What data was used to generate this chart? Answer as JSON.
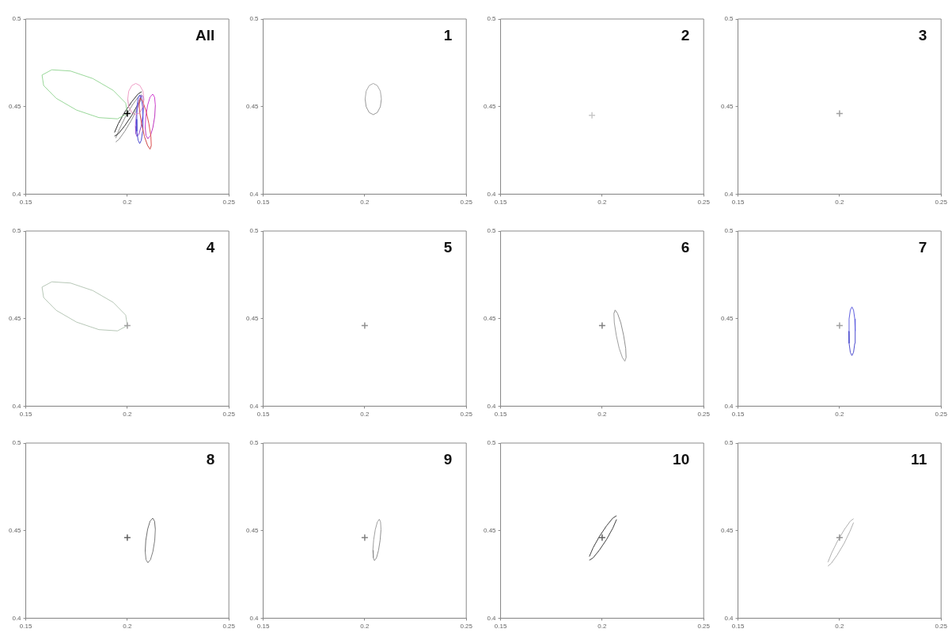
{
  "chart_data": [
    {
      "type": "line",
      "annotations": [
        "All"
      ],
      "xlim": [
        0.15,
        0.25
      ],
      "ylim": [
        0.4,
        0.5
      ],
      "xticks": [
        0.15,
        0.2,
        0.25
      ],
      "yticks": [
        0.4,
        0.45,
        0.5
      ],
      "series": [
        {
          "type": "line",
          "marker": "none",
          "color": "#f0a0c8",
          "x": [
            0.2002,
            0.2007,
            0.2022,
            0.2042,
            0.2062,
            0.2077,
            0.2082
          ],
          "values": [
            0.4543,
            0.4588,
            0.462,
            0.4632,
            0.462,
            0.4588,
            0.4543
          ]
        },
        {
          "type": "line",
          "marker": "none",
          "color": "#e090b8",
          "x": [
            0.2002,
            0.2007,
            0.2022,
            0.2042,
            0.2062,
            0.2077,
            0.2082
          ],
          "values": [
            0.4543,
            0.4499,
            0.4466,
            0.4454,
            0.4466,
            0.4499,
            0.4543
          ]
        },
        {
          "type": "line",
          "marker": "none",
          "color": "#9ad89a",
          "x": [
            0.158,
            0.1628,
            0.172,
            0.183,
            0.193,
            0.1992,
            0.2
          ],
          "values": [
            0.468,
            0.471,
            0.4703,
            0.466,
            0.4593,
            0.452,
            0.446
          ]
        },
        {
          "type": "line",
          "marker": "none",
          "color": "#9ad89a",
          "x": [
            0.158,
            0.1588,
            0.165,
            0.175,
            0.186,
            0.1952,
            0.2
          ],
          "values": [
            0.468,
            0.462,
            0.4547,
            0.448,
            0.4437,
            0.443,
            0.446
          ]
        },
        {
          "type": "line",
          "marker": "none",
          "color": "#e05050",
          "x": [
            0.2058,
            0.2064,
            0.2076,
            0.2092,
            0.2106,
            0.2116,
            0.2118
          ],
          "values": [
            0.4529,
            0.4549,
            0.4529,
            0.4476,
            0.4403,
            0.433,
            0.4277
          ]
        },
        {
          "type": "line",
          "marker": "none",
          "color": "#d04848",
          "x": [
            0.2058,
            0.206,
            0.207,
            0.2084,
            0.21,
            0.2112,
            0.2118
          ],
          "values": [
            0.4529,
            0.4476,
            0.4403,
            0.433,
            0.4277,
            0.4257,
            0.4277
          ]
        },
        {
          "type": "line",
          "marker": "none",
          "color": "#5a5ae0",
          "x": [
            0.2045,
            0.2047,
            0.2053,
            0.2061,
            0.2069,
            0.2075,
            0.2077
          ],
          "values": [
            0.4428,
            0.4498,
            0.4548,
            0.4567,
            0.4548,
            0.4498,
            0.4428
          ]
        },
        {
          "type": "line",
          "marker": "none",
          "color": "#4c4cd0",
          "x": [
            0.2045,
            0.2047,
            0.2053,
            0.2061,
            0.2069,
            0.2075,
            0.2077
          ],
          "values": [
            0.4428,
            0.4359,
            0.4308,
            0.4289,
            0.4308,
            0.4359,
            0.4428
          ]
        },
        {
          "type": "line",
          "marker": "none",
          "color": "#d040d0",
          "x": [
            0.2088,
            0.2091,
            0.21,
            0.2112,
            0.2125,
            0.2134,
            0.2138
          ],
          "values": [
            0.4381,
            0.4444,
            0.4508,
            0.4554,
            0.4571,
            0.4554,
            0.4508
          ]
        },
        {
          "type": "line",
          "marker": "none",
          "color": "#c038c0",
          "x": [
            0.2088,
            0.2092,
            0.2101,
            0.2114,
            0.2126,
            0.2135,
            0.2138
          ],
          "values": [
            0.4381,
            0.4334,
            0.4317,
            0.4334,
            0.4381,
            0.4444,
            0.4508
          ]
        },
        {
          "type": "line",
          "marker": "none",
          "color": "#a060e0",
          "x": [
            0.204,
            0.2044,
            0.2052,
            0.2062,
            0.2072,
            0.2078,
            0.208
          ],
          "values": [
            0.4388,
            0.4447,
            0.4506,
            0.4549,
            0.4565,
            0.4549,
            0.4506
          ]
        },
        {
          "type": "line",
          "marker": "none",
          "color": "#9050d0",
          "x": [
            0.204,
            0.2042,
            0.2048,
            0.2058,
            0.2068,
            0.2076,
            0.208
          ],
          "values": [
            0.4388,
            0.4345,
            0.4329,
            0.4345,
            0.4388,
            0.4447,
            0.4506
          ]
        },
        {
          "type": "line",
          "marker": "none",
          "color": "#303030",
          "x": [
            0.1937,
            0.1955,
            0.1986,
            0.2022,
            0.2053,
            0.2071
          ],
          "values": [
            0.4331,
            0.4344,
            0.4388,
            0.445,
            0.4515,
            0.4564
          ]
        },
        {
          "type": "line",
          "marker": "none",
          "color": "#303030",
          "x": [
            0.1937,
            0.1955,
            0.1986,
            0.2022,
            0.2053,
            0.2071
          ],
          "values": [
            0.4352,
            0.4401,
            0.4466,
            0.4528,
            0.4572,
            0.4585
          ]
        },
        {
          "type": "line",
          "marker": "none",
          "color": "#909090",
          "x": [
            0.1943,
            0.1959,
            0.1988,
            0.2022,
            0.2051,
            0.2069
          ],
          "values": [
            0.4298,
            0.4313,
            0.436,
            0.4426,
            0.4495,
            0.4546
          ]
        },
        {
          "type": "line",
          "marker": "none",
          "color": "#909090",
          "x": [
            0.1943,
            0.1961,
            0.199,
            0.2024,
            0.2053,
            0.2069
          ],
          "values": [
            0.432,
            0.4372,
            0.444,
            0.4507,
            0.4554,
            0.4568
          ]
        },
        {
          "type": "scatter",
          "marker": "cross",
          "color": "#000000",
          "x": [
            0.2
          ],
          "values": [
            0.446
          ]
        }
      ]
    },
    {
      "type": "line",
      "annotations": [
        "1"
      ],
      "xlim": [
        0.15,
        0.25
      ],
      "ylim": [
        0.4,
        0.5
      ],
      "xticks": [
        0.15,
        0.2,
        0.25
      ],
      "yticks": [
        0.4,
        0.45,
        0.5
      ],
      "series": [
        {
          "type": "line",
          "marker": "none",
          "color": "#a8a8a8",
          "x": [
            0.2002,
            0.2007,
            0.2022,
            0.2042,
            0.2062,
            0.2077,
            0.2082
          ],
          "values": [
            0.4543,
            0.4588,
            0.462,
            0.4632,
            0.462,
            0.4588,
            0.4543
          ]
        },
        {
          "type": "line",
          "marker": "none",
          "color": "#989898",
          "x": [
            0.2002,
            0.2007,
            0.2022,
            0.2042,
            0.2062,
            0.2077,
            0.2082
          ],
          "values": [
            0.4543,
            0.4499,
            0.4466,
            0.4454,
            0.4466,
            0.4499,
            0.4543
          ]
        }
      ]
    },
    {
      "type": "line",
      "annotations": [
        "2"
      ],
      "xlim": [
        0.15,
        0.25
      ],
      "ylim": [
        0.4,
        0.5
      ],
      "xticks": [
        0.15,
        0.2,
        0.25
      ],
      "yticks": [
        0.4,
        0.45,
        0.5
      ],
      "series": [
        {
          "type": "scatter",
          "marker": "cross",
          "color": "#c8c8c8",
          "x": [
            0.195
          ],
          "values": [
            0.445
          ]
        }
      ]
    },
    {
      "type": "line",
      "annotations": [
        "3"
      ],
      "xlim": [
        0.15,
        0.25
      ],
      "ylim": [
        0.4,
        0.5
      ],
      "xticks": [
        0.15,
        0.2,
        0.25
      ],
      "yticks": [
        0.4,
        0.45,
        0.5
      ],
      "series": [
        {
          "type": "scatter",
          "marker": "cross",
          "color": "#a0a0a0",
          "x": [
            0.2
          ],
          "values": [
            0.446
          ]
        }
      ]
    },
    {
      "type": "line",
      "annotations": [
        "4"
      ],
      "xlim": [
        0.15,
        0.25
      ],
      "ylim": [
        0.4,
        0.5
      ],
      "xticks": [
        0.15,
        0.2,
        0.25
      ],
      "yticks": [
        0.4,
        0.45,
        0.5
      ],
      "series": [
        {
          "type": "line",
          "marker": "none",
          "color": "#b8c8b8",
          "x": [
            0.158,
            0.1628,
            0.172,
            0.183,
            0.193,
            0.1992,
            0.2
          ],
          "values": [
            0.468,
            0.471,
            0.4703,
            0.466,
            0.4593,
            0.452,
            0.446
          ]
        },
        {
          "type": "line",
          "marker": "none",
          "color": "#b8c8b8",
          "x": [
            0.158,
            0.1588,
            0.165,
            0.175,
            0.186,
            0.1952,
            0.2
          ],
          "values": [
            0.468,
            0.462,
            0.4547,
            0.448,
            0.4437,
            0.443,
            0.446
          ]
        },
        {
          "type": "scatter",
          "marker": "cross",
          "color": "#a0a0a0",
          "x": [
            0.2
          ],
          "values": [
            0.446
          ]
        }
      ]
    },
    {
      "type": "line",
      "annotations": [
        "5"
      ],
      "xlim": [
        0.15,
        0.25
      ],
      "ylim": [
        0.4,
        0.5
      ],
      "xticks": [
        0.15,
        0.2,
        0.25
      ],
      "yticks": [
        0.4,
        0.45,
        0.5
      ],
      "series": [
        {
          "type": "scatter",
          "marker": "cross",
          "color": "#909090",
          "x": [
            0.2
          ],
          "values": [
            0.446
          ]
        }
      ]
    },
    {
      "type": "line",
      "annotations": [
        "6"
      ],
      "xlim": [
        0.15,
        0.25
      ],
      "ylim": [
        0.4,
        0.5
      ],
      "xticks": [
        0.15,
        0.2,
        0.25
      ],
      "yticks": [
        0.4,
        0.45,
        0.5
      ],
      "series": [
        {
          "type": "line",
          "marker": "none",
          "color": "#909090",
          "x": [
            0.2058,
            0.2064,
            0.2076,
            0.2092,
            0.2106,
            0.2116,
            0.2118
          ],
          "values": [
            0.4529,
            0.4549,
            0.4529,
            0.4476,
            0.4403,
            0.433,
            0.4277
          ]
        },
        {
          "type": "line",
          "marker": "none",
          "color": "#a0a0a0",
          "x": [
            0.2058,
            0.206,
            0.207,
            0.2084,
            0.21,
            0.2112,
            0.2118
          ],
          "values": [
            0.4529,
            0.4476,
            0.4403,
            0.433,
            0.4277,
            0.4257,
            0.4277
          ]
        },
        {
          "type": "scatter",
          "marker": "cross",
          "color": "#808080",
          "x": [
            0.2
          ],
          "values": [
            0.446
          ]
        }
      ]
    },
    {
      "type": "line",
      "annotations": [
        "7"
      ],
      "xlim": [
        0.15,
        0.25
      ],
      "ylim": [
        0.4,
        0.5
      ],
      "xticks": [
        0.15,
        0.2,
        0.25
      ],
      "yticks": [
        0.4,
        0.45,
        0.5
      ],
      "series": [
        {
          "type": "line",
          "marker": "none",
          "color": "#6060e0",
          "x": [
            0.2045,
            0.2047,
            0.2053,
            0.2061,
            0.2069,
            0.2075,
            0.2077
          ],
          "values": [
            0.4428,
            0.4498,
            0.4548,
            0.4567,
            0.4548,
            0.4498,
            0.4428
          ]
        },
        {
          "type": "line",
          "marker": "none",
          "color": "#5050d0",
          "x": [
            0.2045,
            0.2047,
            0.2053,
            0.2061,
            0.2069,
            0.2075,
            0.2077
          ],
          "values": [
            0.4428,
            0.4359,
            0.4308,
            0.4289,
            0.4308,
            0.4359,
            0.4428
          ]
        },
        {
          "type": "scatter",
          "marker": "cross",
          "color": "#a0a0a0",
          "x": [
            0.2
          ],
          "values": [
            0.446
          ]
        }
      ]
    },
    {
      "type": "line",
      "annotations": [
        "8"
      ],
      "xlim": [
        0.15,
        0.25
      ],
      "ylim": [
        0.4,
        0.5
      ],
      "xticks": [
        0.15,
        0.2,
        0.25
      ],
      "yticks": [
        0.4,
        0.45,
        0.5
      ],
      "series": [
        {
          "type": "line",
          "marker": "none",
          "color": "#707070",
          "x": [
            0.2088,
            0.2091,
            0.21,
            0.2112,
            0.2125,
            0.2134,
            0.2138
          ],
          "values": [
            0.4381,
            0.4444,
            0.4508,
            0.4554,
            0.4571,
            0.4554,
            0.4508
          ]
        },
        {
          "type": "line",
          "marker": "none",
          "color": "#808080",
          "x": [
            0.2088,
            0.2092,
            0.2101,
            0.2114,
            0.2126,
            0.2135,
            0.2138
          ],
          "values": [
            0.4381,
            0.4334,
            0.4317,
            0.4334,
            0.4381,
            0.4444,
            0.4508
          ]
        },
        {
          "type": "scatter",
          "marker": "cross",
          "color": "#606060",
          "x": [
            0.2
          ],
          "values": [
            0.446
          ]
        }
      ]
    },
    {
      "type": "line",
      "annotations": [
        "9"
      ],
      "xlim": [
        0.15,
        0.25
      ],
      "ylim": [
        0.4,
        0.5
      ],
      "xticks": [
        0.15,
        0.2,
        0.25
      ],
      "yticks": [
        0.4,
        0.45,
        0.5
      ],
      "series": [
        {
          "type": "line",
          "marker": "none",
          "color": "#a0a0a0",
          "x": [
            0.204,
            0.2044,
            0.2052,
            0.2062,
            0.2072,
            0.2078,
            0.208
          ],
          "values": [
            0.4388,
            0.4447,
            0.4506,
            0.4549,
            0.4565,
            0.4549,
            0.4506
          ]
        },
        {
          "type": "line",
          "marker": "none",
          "color": "#909090",
          "x": [
            0.204,
            0.2042,
            0.2048,
            0.2058,
            0.2068,
            0.2076,
            0.208
          ],
          "values": [
            0.4388,
            0.4345,
            0.4329,
            0.4345,
            0.4388,
            0.4447,
            0.4506
          ]
        },
        {
          "type": "scatter",
          "marker": "cross",
          "color": "#808080",
          "x": [
            0.2
          ],
          "values": [
            0.446
          ]
        }
      ]
    },
    {
      "type": "line",
      "annotations": [
        "10"
      ],
      "xlim": [
        0.15,
        0.25
      ],
      "ylim": [
        0.4,
        0.5
      ],
      "xticks": [
        0.15,
        0.2,
        0.25
      ],
      "yticks": [
        0.4,
        0.45,
        0.5
      ],
      "series": [
        {
          "type": "line",
          "marker": "none",
          "color": "#404040",
          "x": [
            0.1937,
            0.1955,
            0.1986,
            0.2022,
            0.2053,
            0.2071
          ],
          "values": [
            0.4331,
            0.4344,
            0.4388,
            0.445,
            0.4515,
            0.4564
          ]
        },
        {
          "type": "line",
          "marker": "none",
          "color": "#404040",
          "x": [
            0.1937,
            0.1955,
            0.1986,
            0.2022,
            0.2053,
            0.2071
          ],
          "values": [
            0.4352,
            0.4401,
            0.4466,
            0.4528,
            0.4572,
            0.4585
          ]
        },
        {
          "type": "scatter",
          "marker": "cross",
          "color": "#606060",
          "x": [
            0.2
          ],
          "values": [
            0.446
          ]
        }
      ]
    },
    {
      "type": "line",
      "annotations": [
        "11"
      ],
      "xlim": [
        0.15,
        0.25
      ],
      "ylim": [
        0.4,
        0.5
      ],
      "xticks": [
        0.15,
        0.2,
        0.25
      ],
      "yticks": [
        0.4,
        0.45,
        0.5
      ],
      "series": [
        {
          "type": "line",
          "marker": "none",
          "color": "#b0b0b0",
          "x": [
            0.1943,
            0.1959,
            0.1988,
            0.2022,
            0.2051,
            0.2069
          ],
          "values": [
            0.4298,
            0.4313,
            0.436,
            0.4426,
            0.4495,
            0.4546
          ]
        },
        {
          "type": "line",
          "marker": "none",
          "color": "#b0b0b0",
          "x": [
            0.1943,
            0.1961,
            0.199,
            0.2024,
            0.2053,
            0.2069
          ],
          "values": [
            0.432,
            0.4372,
            0.444,
            0.4507,
            0.4554,
            0.4568
          ]
        },
        {
          "type": "scatter",
          "marker": "cross",
          "color": "#909090",
          "x": [
            0.2
          ],
          "values": [
            0.446
          ]
        }
      ]
    }
  ]
}
